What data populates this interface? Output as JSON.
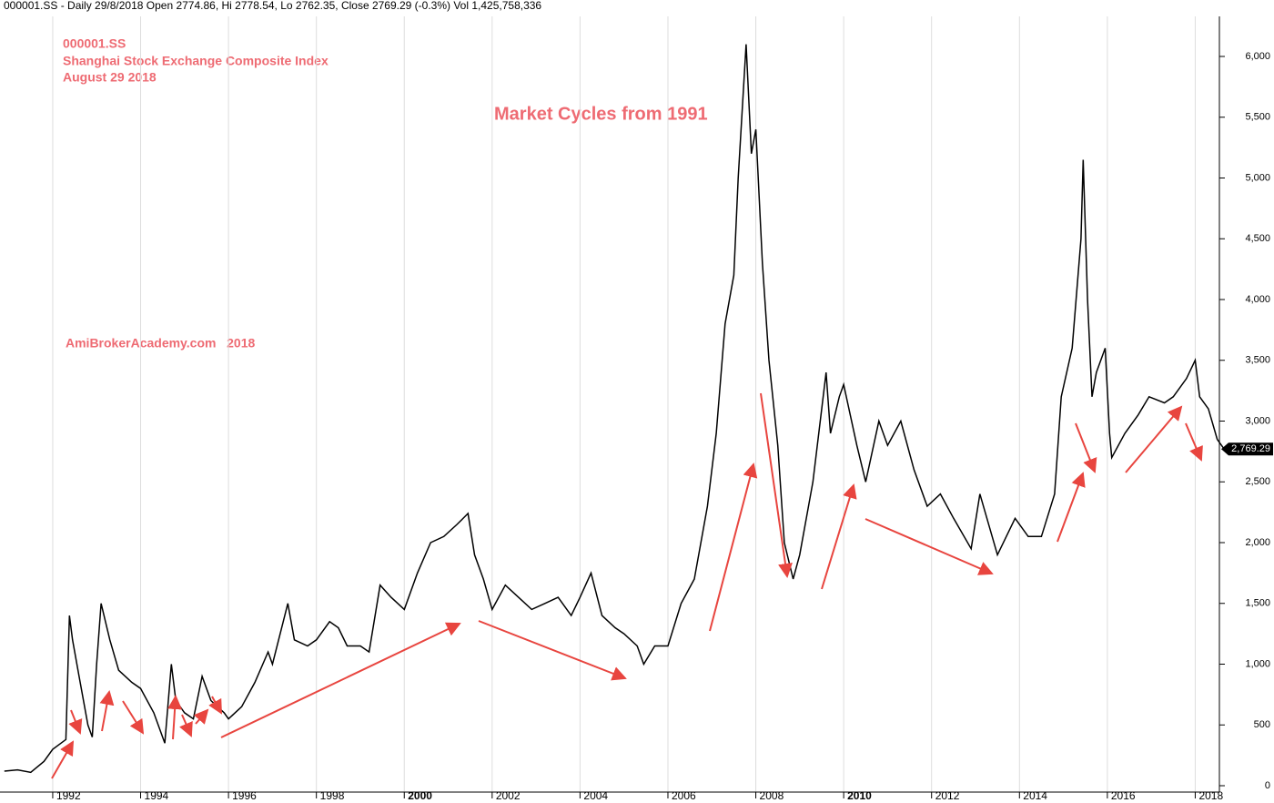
{
  "chart_data": {
    "type": "line",
    "header": "000001.SS - Daily 29/8/2018 Open 2774.86, Hi 2778.54, Lo 2762.35, Close 2769.29 (-0.3%) Vol 1,425,758,336",
    "annotations": [
      "000001.SS",
      "Shanghai Stock Exchange Composite Index",
      "August 29 2018",
      "AmiBrokerAcademy.com   2018"
    ],
    "title": "Market Cycles from 1991",
    "x": [
      1990.9,
      1991.2,
      1991.5,
      1991.8,
      1992.0,
      1992.3,
      1992.38,
      1992.45,
      1992.6,
      1992.8,
      1992.9,
      1993.0,
      1993.1,
      1993.3,
      1993.5,
      1993.8,
      1994.0,
      1994.3,
      1994.55,
      1994.7,
      1994.8,
      1995.0,
      1995.2,
      1995.4,
      1995.6,
      1995.9,
      1996.0,
      1996.3,
      1996.6,
      1996.9,
      1997.0,
      1997.35,
      1997.5,
      1997.8,
      1998.0,
      1998.3,
      1998.5,
      1998.7,
      1999.0,
      1999.2,
      1999.45,
      1999.7,
      2000.0,
      2000.3,
      2000.6,
      2000.9,
      2001.2,
      2001.45,
      2001.6,
      2001.8,
      2002.0,
      2002.3,
      2002.6,
      2002.9,
      2003.2,
      2003.5,
      2003.8,
      2004.0,
      2004.25,
      2004.5,
      2004.8,
      2005.0,
      2005.3,
      2005.45,
      2005.7,
      2006.0,
      2006.3,
      2006.6,
      2006.9,
      2007.1,
      2007.3,
      2007.5,
      2007.6,
      2007.78,
      2007.9,
      2008.0,
      2008.15,
      2008.3,
      2008.5,
      2008.65,
      2008.85,
      2009.0,
      2009.3,
      2009.6,
      2009.7,
      2009.9,
      2010.0,
      2010.3,
      2010.5,
      2010.8,
      2011.0,
      2011.3,
      2011.6,
      2011.9,
      2012.2,
      2012.5,
      2012.9,
      2013.1,
      2013.5,
      2013.9,
      2014.2,
      2014.5,
      2014.8,
      2014.95,
      2015.2,
      2015.4,
      2015.45,
      2015.55,
      2015.65,
      2015.75,
      2015.95,
      2016.05,
      2016.1,
      2016.4,
      2016.7,
      2016.95,
      2017.3,
      2017.5,
      2017.8,
      2018.0,
      2018.1,
      2018.3,
      2018.5,
      2018.66
    ],
    "series": [
      {
        "name": "000001.SS",
        "color": "#000000",
        "values": [
          120,
          130,
          110,
          200,
          300,
          380,
          1400,
          1200,
          900,
          500,
          400,
          1000,
          1500,
          1200,
          950,
          850,
          800,
          600,
          350,
          1000,
          700,
          600,
          550,
          900,
          700,
          600,
          550,
          650,
          850,
          1100,
          1000,
          1500,
          1200,
          1150,
          1200,
          1350,
          1300,
          1150,
          1150,
          1100,
          1650,
          1550,
          1450,
          1750,
          2000,
          2050,
          2150,
          2240,
          1900,
          1700,
          1450,
          1650,
          1550,
          1450,
          1500,
          1550,
          1400,
          1550,
          1750,
          1400,
          1300,
          1250,
          1150,
          1000,
          1150,
          1150,
          1500,
          1700,
          2300,
          2900,
          3800,
          4200,
          5000,
          6100,
          5200,
          5400,
          4300,
          3500,
          2800,
          2000,
          1700,
          1900,
          2500,
          3400,
          2900,
          3200,
          3300,
          2800,
          2500,
          3000,
          2800,
          3000,
          2600,
          2300,
          2400,
          2200,
          1950,
          2400,
          1900,
          2200,
          2050,
          2050,
          2400,
          3200,
          3600,
          4500,
          5150,
          4000,
          3200,
          3400,
          3600,
          2900,
          2700,
          2900,
          3050,
          3200,
          3150,
          3200,
          3350,
          3500,
          3200,
          3100,
          2850,
          2769.29
        ]
      }
    ],
    "last_value_label": {
      "value": 2769.29,
      "label": "2,769.29"
    },
    "xlim": [
      1990.8,
      2018.55
    ],
    "xticks": [
      1992,
      1994,
      1996,
      1998,
      2000,
      2002,
      2004,
      2006,
      2008,
      2010,
      2012,
      2014,
      2016,
      2018
    ],
    "ylim": [
      0,
      6000
    ],
    "yticks": [
      0,
      500,
      {
        "value": 1000,
        "label": "1,000"
      },
      {
        "value": 1500,
        "label": "1,500"
      },
      {
        "value": 2000,
        "label": "2,000"
      },
      {
        "value": 2500,
        "label": "2,500"
      },
      {
        "value": 3000,
        "label": "3,000"
      },
      {
        "value": 3500,
        "label": "3,500"
      },
      {
        "value": 4000,
        "label": "4,000"
      },
      {
        "value": 4500,
        "label": "4,500"
      },
      {
        "value": 5000,
        "label": "5,000"
      },
      {
        "value": 5500,
        "label": "5,500"
      },
      {
        "value": 6000,
        "label": "6,000"
      }
    ],
    "grid": "x"
  }
}
